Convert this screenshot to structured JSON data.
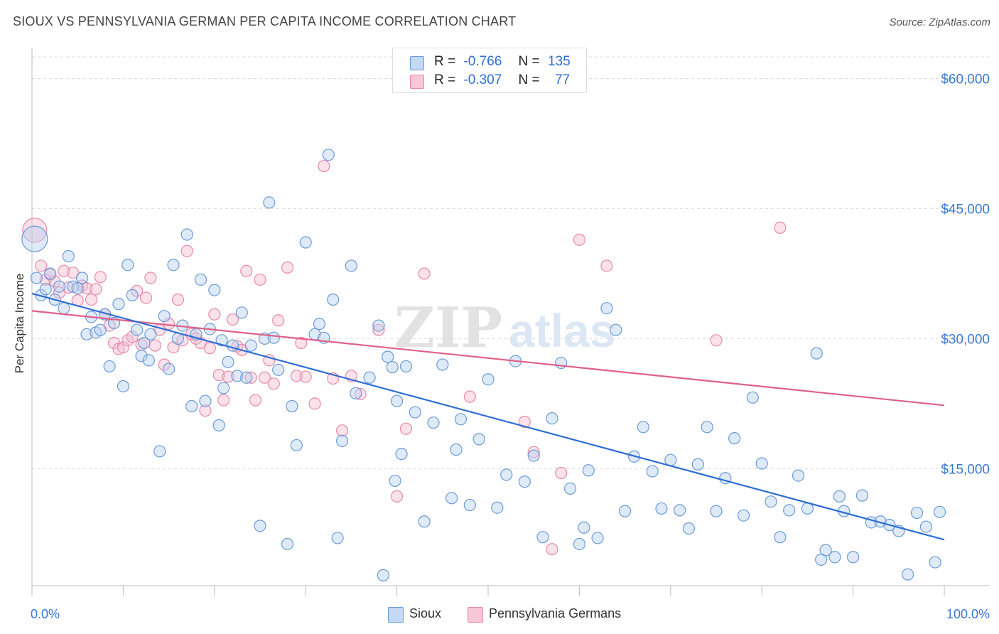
{
  "title": "SIOUX VS PENNSYLVANIA GERMAN PER CAPITA INCOME CORRELATION CHART",
  "source": "Source: ZipAtlas.com",
  "colors": {
    "sioux_fill": "#b8d0f0",
    "sioux_stroke": "#6a9bd8",
    "sioux_line": "#2e6fd1",
    "pg_fill": "#f5bdd0",
    "pg_stroke": "#e88aab",
    "pg_line": "#e0608a",
    "axis_label": "#3a78d4",
    "grid": "#dddddd"
  },
  "legend": {
    "rows": [
      {
        "r_label": "R =",
        "r_value": "-0.766",
        "n_label": "N =",
        "n_value": "135"
      },
      {
        "r_label": "R =",
        "r_value": "-0.307",
        "n_label": "N =",
        "n_value": "77"
      }
    ]
  },
  "bottom_legend": [
    "Sioux",
    "Pennsylvania Germans"
  ],
  "chart_data": {
    "type": "scatter",
    "title": "SIOUX VS PENNSYLVANIA GERMAN PER CAPITA INCOME CORRELATION CHART",
    "xlabel": "",
    "ylabel": "Per Capita Income",
    "xlim": [
      0,
      100
    ],
    "ylim": [
      1500,
      62500
    ],
    "x_tick_labels": [
      "0.0%",
      "100.0%"
    ],
    "y_ticks": [
      15000,
      30000,
      45000,
      60000
    ],
    "y_tick_labels": [
      "$15,000",
      "$30,000",
      "$45,000",
      "$60,000"
    ],
    "grid": true,
    "legend_position": "top-center",
    "series": [
      {
        "name": "Sioux",
        "r": -0.766,
        "n": 135,
        "trend": {
          "x": [
            0,
            100
          ],
          "y": [
            35200,
            6800
          ]
        },
        "points": [
          [
            0.3,
            41500
          ],
          [
            0.5,
            37000
          ],
          [
            1.0,
            35000
          ],
          [
            1.5,
            35700
          ],
          [
            2.0,
            37500
          ],
          [
            2.5,
            34500
          ],
          [
            3.0,
            36000
          ],
          [
            3.5,
            33500
          ],
          [
            4.0,
            39500
          ],
          [
            4.5,
            36000
          ],
          [
            5.0,
            35800
          ],
          [
            5.5,
            37000
          ],
          [
            6.0,
            30500
          ],
          [
            6.5,
            32500
          ],
          [
            7.0,
            30700
          ],
          [
            7.5,
            31000
          ],
          [
            8.0,
            32800
          ],
          [
            8.5,
            26800
          ],
          [
            9.0,
            31800
          ],
          [
            9.5,
            34000
          ],
          [
            10.0,
            24500
          ],
          [
            10.5,
            38500
          ],
          [
            11.0,
            35000
          ],
          [
            11.5,
            31000
          ],
          [
            12.0,
            28000
          ],
          [
            12.3,
            29500
          ],
          [
            12.8,
            27500
          ],
          [
            13.0,
            30500
          ],
          [
            14.0,
            17000
          ],
          [
            14.5,
            32600
          ],
          [
            15.0,
            26500
          ],
          [
            15.5,
            38500
          ],
          [
            16.0,
            30000
          ],
          [
            16.5,
            31500
          ],
          [
            17.0,
            42000
          ],
          [
            17.5,
            22200
          ],
          [
            18.0,
            30500
          ],
          [
            18.5,
            36800
          ],
          [
            19.0,
            22800
          ],
          [
            19.5,
            31100
          ],
          [
            20.0,
            35600
          ],
          [
            20.5,
            20000
          ],
          [
            20.8,
            29800
          ],
          [
            21.0,
            24300
          ],
          [
            21.5,
            27300
          ],
          [
            22.0,
            29200
          ],
          [
            22.5,
            25700
          ],
          [
            23.0,
            33000
          ],
          [
            23.5,
            25500
          ],
          [
            24.0,
            29200
          ],
          [
            25.0,
            8400
          ],
          [
            25.5,
            30000
          ],
          [
            26.0,
            45700
          ],
          [
            26.5,
            30100
          ],
          [
            27.0,
            26400
          ],
          [
            28.0,
            6300
          ],
          [
            28.5,
            22200
          ],
          [
            29.0,
            17700
          ],
          [
            30.0,
            41100
          ],
          [
            31.0,
            30500
          ],
          [
            31.5,
            31700
          ],
          [
            32.0,
            30100
          ],
          [
            32.5,
            51200
          ],
          [
            33.0,
            34500
          ],
          [
            33.5,
            7000
          ],
          [
            34.0,
            18200
          ],
          [
            35.0,
            38400
          ],
          [
            35.5,
            23700
          ],
          [
            37.0,
            25500
          ],
          [
            38.0,
            31500
          ],
          [
            38.5,
            2700
          ],
          [
            39.0,
            27900
          ],
          [
            39.5,
            26700
          ],
          [
            40.0,
            22800
          ],
          [
            40.5,
            16700
          ],
          [
            41.0,
            26800
          ],
          [
            42.0,
            21500
          ],
          [
            43.0,
            8900
          ],
          [
            44.0,
            20300
          ],
          [
            45.0,
            27000
          ],
          [
            46.0,
            11600
          ],
          [
            46.5,
            17200
          ],
          [
            47.0,
            20700
          ],
          [
            48.0,
            10800
          ],
          [
            49.0,
            18400
          ],
          [
            50.0,
            25300
          ],
          [
            51.0,
            10500
          ],
          [
            52.0,
            14300
          ],
          [
            53.0,
            27400
          ],
          [
            54.0,
            13500
          ],
          [
            55.0,
            16500
          ],
          [
            56.0,
            7100
          ],
          [
            57.0,
            20800
          ],
          [
            58.0,
            27200
          ],
          [
            59.0,
            12700
          ],
          [
            60.0,
            6300
          ],
          [
            61.0,
            14800
          ],
          [
            62.0,
            7000
          ],
          [
            63.0,
            33500
          ],
          [
            64.0,
            31000
          ],
          [
            65.0,
            10100
          ],
          [
            66.0,
            16400
          ],
          [
            67.0,
            19800
          ],
          [
            68.0,
            14700
          ],
          [
            69.0,
            10400
          ],
          [
            70.0,
            16000
          ],
          [
            71.0,
            10200
          ],
          [
            72.0,
            8100
          ],
          [
            73.0,
            15500
          ],
          [
            74.0,
            19800
          ],
          [
            75.0,
            10100
          ],
          [
            76.0,
            13900
          ],
          [
            77.0,
            18500
          ],
          [
            78.0,
            9600
          ],
          [
            79.0,
            23200
          ],
          [
            80.0,
            15600
          ],
          [
            81.0,
            11200
          ],
          [
            82.0,
            7100
          ],
          [
            83.0,
            10200
          ],
          [
            84.0,
            14200
          ],
          [
            85.0,
            10400
          ],
          [
            86.0,
            28300
          ],
          [
            86.5,
            4500
          ],
          [
            87.0,
            5600
          ],
          [
            88.0,
            4800
          ],
          [
            88.5,
            11800
          ],
          [
            89.0,
            10100
          ],
          [
            90.0,
            4800
          ],
          [
            91.0,
            11900
          ],
          [
            92.0,
            8800
          ],
          [
            93.0,
            8900
          ],
          [
            94.0,
            8500
          ],
          [
            95.0,
            7800
          ],
          [
            96.0,
            2800
          ],
          [
            97.0,
            9900
          ],
          [
            98.0,
            8300
          ],
          [
            99.0,
            4200
          ],
          [
            99.5,
            10000
          ],
          [
            60.5,
            8200
          ],
          [
            39.8,
            13600
          ]
        ]
      },
      {
        "name": "Pennsylvania Germans",
        "r": -0.307,
        "n": 77,
        "trend": {
          "x": [
            0,
            100
          ],
          "y": [
            33200,
            22300
          ]
        },
        "points": [
          [
            0.3,
            42500
          ],
          [
            1.0,
            38400
          ],
          [
            1.5,
            36800
          ],
          [
            2.0,
            37400
          ],
          [
            2.5,
            36600
          ],
          [
            3.0,
            35300
          ],
          [
            3.5,
            37800
          ],
          [
            4.0,
            35900
          ],
          [
            4.5,
            37600
          ],
          [
            5.0,
            34400
          ],
          [
            5.5,
            36100
          ],
          [
            6.0,
            35800
          ],
          [
            6.5,
            34500
          ],
          [
            7.0,
            35700
          ],
          [
            7.5,
            37100
          ],
          [
            8.0,
            32800
          ],
          [
            8.5,
            31500
          ],
          [
            9.0,
            29500
          ],
          [
            9.5,
            28800
          ],
          [
            10.0,
            29000
          ],
          [
            10.5,
            29800
          ],
          [
            11.0,
            30200
          ],
          [
            11.5,
            35500
          ],
          [
            12.0,
            29300
          ],
          [
            12.5,
            34700
          ],
          [
            13.0,
            37000
          ],
          [
            13.5,
            29200
          ],
          [
            14.0,
            31000
          ],
          [
            14.5,
            27000
          ],
          [
            15.0,
            31700
          ],
          [
            15.5,
            29000
          ],
          [
            16.0,
            34500
          ],
          [
            16.5,
            29800
          ],
          [
            17.0,
            40100
          ],
          [
            17.5,
            30500
          ],
          [
            18.0,
            30000
          ],
          [
            18.5,
            29500
          ],
          [
            19.0,
            21700
          ],
          [
            19.5,
            28900
          ],
          [
            20.0,
            32800
          ],
          [
            20.5,
            25800
          ],
          [
            21.0,
            22900
          ],
          [
            21.5,
            25600
          ],
          [
            22.0,
            32200
          ],
          [
            22.5,
            29100
          ],
          [
            23.0,
            28700
          ],
          [
            23.5,
            37800
          ],
          [
            24.0,
            25500
          ],
          [
            24.5,
            22900
          ],
          [
            25.0,
            36800
          ],
          [
            25.5,
            25500
          ],
          [
            26.0,
            27500
          ],
          [
            26.5,
            24800
          ],
          [
            27.0,
            32100
          ],
          [
            28.0,
            38200
          ],
          [
            29.0,
            25700
          ],
          [
            29.5,
            29500
          ],
          [
            30.0,
            25600
          ],
          [
            31.0,
            22500
          ],
          [
            32.0,
            49900
          ],
          [
            33.0,
            25400
          ],
          [
            34.0,
            19400
          ],
          [
            35.0,
            25700
          ],
          [
            36.0,
            23600
          ],
          [
            38.0,
            31000
          ],
          [
            40.0,
            11800
          ],
          [
            41.0,
            19600
          ],
          [
            43.0,
            37500
          ],
          [
            48.0,
            23300
          ],
          [
            54.0,
            20400
          ],
          [
            55.0,
            16900
          ],
          [
            57.0,
            5700
          ],
          [
            58.0,
            14500
          ],
          [
            60.0,
            41400
          ],
          [
            63.0,
            38400
          ],
          [
            75.0,
            29800
          ],
          [
            82.0,
            42800
          ]
        ]
      }
    ]
  }
}
